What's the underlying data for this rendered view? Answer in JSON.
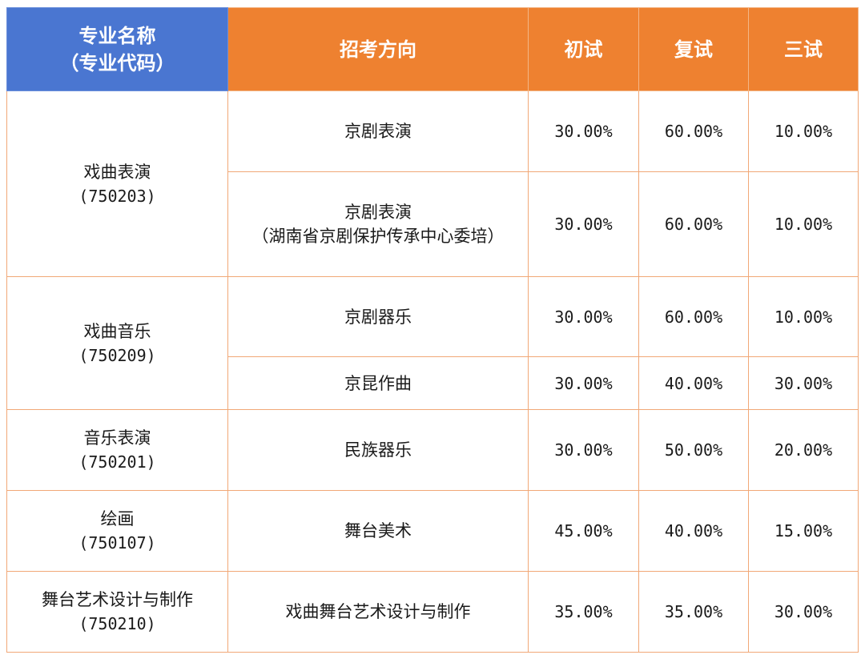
{
  "header": {
    "major_line1": "专业名称",
    "major_line2": "（专业代码）",
    "direction": "招考方向",
    "round1": "初试",
    "round2": "复试",
    "round3": "三试"
  },
  "rows": [
    {
      "major": "戏曲表演",
      "code": "(750203)",
      "directions": [
        {
          "line1": "京剧表演",
          "line2": "",
          "r1": "30.00%",
          "r2": "60.00%",
          "r3": "10.00%"
        },
        {
          "line1": "京剧表演",
          "line2": "（湖南省京剧保护传承中心委培）",
          "r1": "30.00%",
          "r2": "60.00%",
          "r3": "10.00%"
        }
      ]
    },
    {
      "major": "戏曲音乐",
      "code": "(750209)",
      "directions": [
        {
          "line1": "京剧器乐",
          "line2": "",
          "r1": "30.00%",
          "r2": "60.00%",
          "r3": "10.00%"
        },
        {
          "line1": "京昆作曲",
          "line2": "",
          "r1": "30.00%",
          "r2": "40.00%",
          "r3": "30.00%"
        }
      ]
    },
    {
      "major": "音乐表演",
      "code": "(750201)",
      "directions": [
        {
          "line1": "民族器乐",
          "line2": "",
          "r1": "30.00%",
          "r2": "50.00%",
          "r3": "20.00%"
        }
      ]
    },
    {
      "major": "绘画",
      "code": "(750107)",
      "directions": [
        {
          "line1": "舞台美术",
          "line2": "",
          "r1": "45.00%",
          "r2": "40.00%",
          "r3": "15.00%"
        }
      ]
    },
    {
      "major": "舞台艺术设计与制作",
      "code": "(750210)",
      "directions": [
        {
          "line1": "戏曲舞台艺术设计与制作",
          "line2": "",
          "r1": "35.00%",
          "r2": "35.00%",
          "r3": "30.00%"
        }
      ]
    }
  ]
}
